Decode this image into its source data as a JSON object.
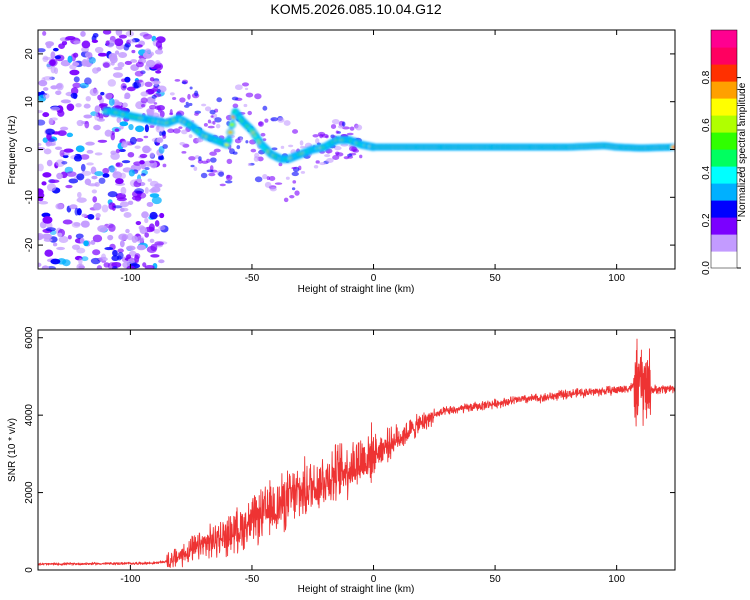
{
  "title": "KOM5.2026.085.10.04.G12",
  "chart_data": [
    {
      "type": "heatmap",
      "name": "spectrogram",
      "xlabel": "Height of straight line (km)",
      "ylabel": "Frequency (Hz)",
      "xlim": [
        -138,
        124
      ],
      "ylim": [
        -25,
        25
      ],
      "xticks": [
        -100,
        -50,
        0,
        50,
        100
      ],
      "yticks": [
        -20,
        -10,
        0,
        10,
        20
      ],
      "colorbar": {
        "label": "Normalized spectral amplitude",
        "range": [
          0,
          1
        ],
        "ticks": [
          "0.0",
          "0.2",
          "0.4",
          "0.6",
          "0.8"
        ],
        "colors": [
          "#ffffff",
          "#c39bff",
          "#7b00ff",
          "#0000ff",
          "#00b0ff",
          "#00ffff",
          "#00ff60",
          "#30ff00",
          "#b0ff00",
          "#ffff00",
          "#ffa000",
          "#ff3000",
          "#ff0060",
          "#ff0090"
        ]
      },
      "ridge": {
        "description": "dominant frequency track vs height",
        "x": [
          -108,
          -100,
          -95,
          -90,
          -85,
          -80,
          -75,
          -70,
          -65,
          -60,
          -57,
          -54,
          -50,
          -46,
          -42,
          -38,
          -35,
          -30,
          -25,
          -20,
          -15,
          -10,
          -5,
          0,
          10,
          20,
          40,
          60,
          80,
          95,
          100,
          110,
          124
        ],
        "y": [
          8,
          7,
          6.5,
          6,
          5.5,
          6.5,
          5,
          3,
          2,
          1,
          8,
          6,
          4,
          1,
          -1,
          -2,
          -2,
          -1,
          0,
          0.5,
          2,
          2,
          1,
          0.5,
          0.5,
          0.5,
          0.5,
          0.5,
          0.5,
          0.8,
          0.5,
          0.3,
          0.5
        ]
      }
    },
    {
      "type": "line",
      "name": "snr",
      "xlabel": "Height of straight line (km)",
      "ylabel": "SNR (10 * v/v)",
      "xlim": [
        -138,
        124
      ],
      "ylim": [
        0,
        6200
      ],
      "xticks": [
        -100,
        -50,
        0,
        50,
        100
      ],
      "yticks": [
        0,
        2000,
        4000,
        6000
      ],
      "color": "#ee3333",
      "series": [
        {
          "name": "SNR",
          "x": [
            -138,
            -120,
            -100,
            -90,
            -85,
            -80,
            -70,
            -60,
            -50,
            -40,
            -30,
            -20,
            -10,
            0,
            10,
            20,
            25,
            30,
            40,
            50,
            60,
            70,
            80,
            90,
            100,
            105,
            110,
            115,
            124
          ],
          "y": [
            150,
            160,
            170,
            180,
            220,
            350,
            650,
            900,
            1250,
            1650,
            2000,
            2350,
            2650,
            3000,
            3400,
            3800,
            4000,
            4100,
            4200,
            4300,
            4400,
            4450,
            4550,
            4600,
            4650,
            4700,
            4800,
            4650,
            4700
          ]
        }
      ]
    }
  ]
}
